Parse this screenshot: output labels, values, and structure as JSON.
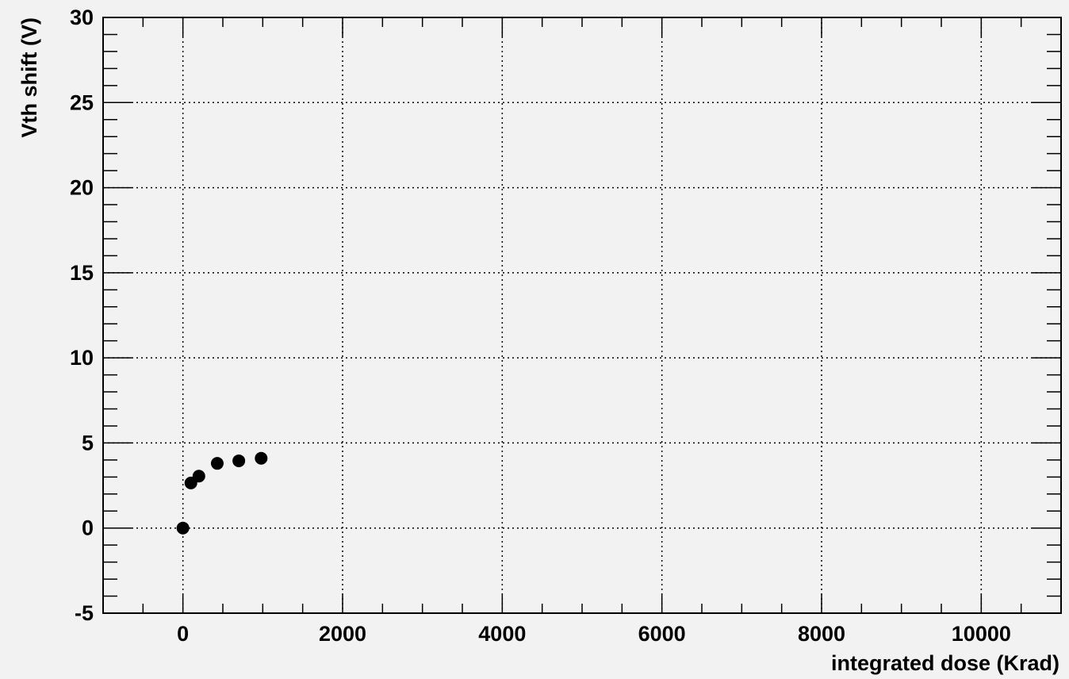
{
  "chart_data": {
    "type": "scatter",
    "title": "",
    "xlabel": "integrated dose (Krad)",
    "ylabel": "Vth shift (V)",
    "xlim": [
      -1000,
      11000
    ],
    "ylim": [
      -5,
      30
    ],
    "x_ticks": [
      0,
      2000,
      4000,
      6000,
      8000,
      10000
    ],
    "y_ticks": [
      -5,
      0,
      5,
      10,
      15,
      20,
      25,
      30
    ],
    "x_tick_labels": [
      "0",
      "2000",
      "4000",
      "6000",
      "8000",
      "10000"
    ],
    "y_tick_labels": [
      "-5",
      "0",
      "5",
      "10",
      "15",
      "20",
      "25",
      "30"
    ],
    "grid": true,
    "legend": "none",
    "series": [
      {
        "x": [
          0,
          100,
          200,
          430,
          700,
          980
        ],
        "y": [
          0,
          2.65,
          3.05,
          3.8,
          3.95,
          4.1
        ]
      }
    ]
  }
}
